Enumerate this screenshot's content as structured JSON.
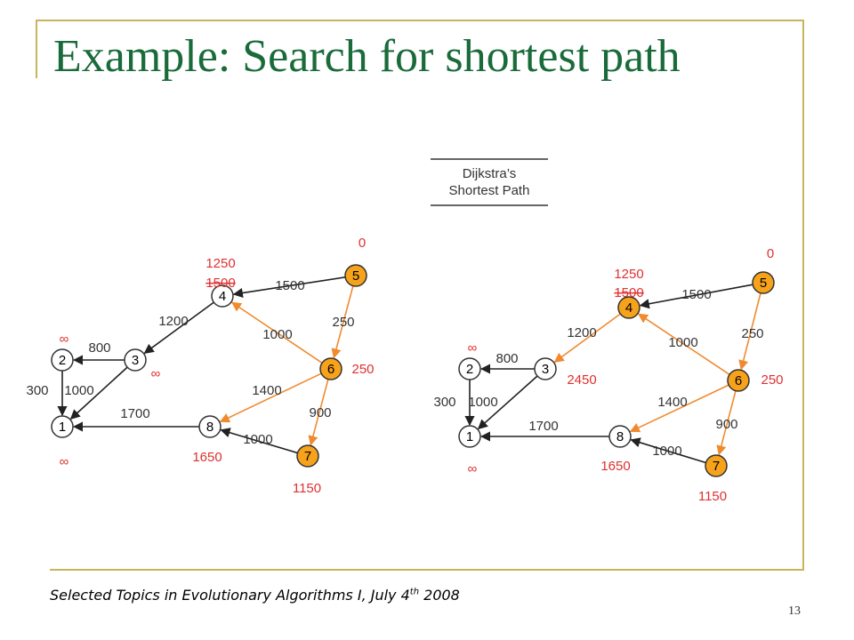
{
  "slide": {
    "title": "Example: Search for shortest path",
    "footer_main": "Selected Topics in Evolutionary Algorithms I, July 4",
    "footer_sup": "th",
    "footer_year": " 2008",
    "page_number": "13"
  },
  "legend": {
    "line1": "Dijkstra’s",
    "line2": "Shortest Path"
  },
  "colors": {
    "title": "#1a6b3a",
    "visited_node": "#f7a21b",
    "tree_edge": "#f08a30",
    "plain_edge": "#222222",
    "distance_label": "#e03030",
    "frame": "#c8b45a"
  },
  "graphs": [
    {
      "nodes": [
        {
          "id": "1",
          "visited": false,
          "distances": [
            "∞"
          ]
        },
        {
          "id": "2",
          "visited": false,
          "distances": [
            "∞"
          ]
        },
        {
          "id": "3",
          "visited": false,
          "distances": [
            "∞"
          ]
        },
        {
          "id": "4",
          "visited": false,
          "distances": [
            "1250",
            "1500"
          ]
        },
        {
          "id": "5",
          "visited": true,
          "distances": [
            "0"
          ]
        },
        {
          "id": "6",
          "visited": true,
          "distances": [
            "250"
          ]
        },
        {
          "id": "7",
          "visited": true,
          "distances": [
            "1150"
          ]
        },
        {
          "id": "8",
          "visited": false,
          "distances": [
            "1650"
          ]
        }
      ],
      "edges": [
        {
          "from": "5",
          "to": "4",
          "weight": "1500",
          "tree": false
        },
        {
          "from": "5",
          "to": "6",
          "weight": "250",
          "tree": true
        },
        {
          "from": "6",
          "to": "4",
          "weight": "1000",
          "tree": true
        },
        {
          "from": "4",
          "to": "3",
          "weight": "1200",
          "tree": false
        },
        {
          "from": "3",
          "to": "2",
          "weight": "800",
          "tree": false
        },
        {
          "from": "2",
          "to": "1",
          "weight": "300",
          "tree": false
        },
        {
          "from": "3",
          "to": "1",
          "weight": "1000",
          "tree": false
        },
        {
          "from": "6",
          "to": "8",
          "weight": "1400",
          "tree": true
        },
        {
          "from": "6",
          "to": "7",
          "weight": "900",
          "tree": true
        },
        {
          "from": "7",
          "to": "8",
          "weight": "1000",
          "tree": false
        },
        {
          "from": "8",
          "to": "1",
          "weight": "1700",
          "tree": false
        }
      ]
    },
    {
      "nodes": [
        {
          "id": "1",
          "visited": false,
          "distances": [
            "∞"
          ]
        },
        {
          "id": "2",
          "visited": false,
          "distances": [
            "∞"
          ]
        },
        {
          "id": "3",
          "visited": false,
          "distances": [
            "2450"
          ]
        },
        {
          "id": "4",
          "visited": true,
          "distances": [
            "1250",
            "1500"
          ]
        },
        {
          "id": "5",
          "visited": true,
          "distances": [
            "0"
          ]
        },
        {
          "id": "6",
          "visited": true,
          "distances": [
            "250"
          ]
        },
        {
          "id": "7",
          "visited": true,
          "distances": [
            "1150"
          ]
        },
        {
          "id": "8",
          "visited": false,
          "distances": [
            "1650"
          ]
        }
      ],
      "edges": [
        {
          "from": "5",
          "to": "4",
          "weight": "1500",
          "tree": false
        },
        {
          "from": "5",
          "to": "6",
          "weight": "250",
          "tree": true
        },
        {
          "from": "6",
          "to": "4",
          "weight": "1000",
          "tree": true
        },
        {
          "from": "4",
          "to": "3",
          "weight": "1200",
          "tree": true
        },
        {
          "from": "3",
          "to": "2",
          "weight": "800",
          "tree": false
        },
        {
          "from": "2",
          "to": "1",
          "weight": "300",
          "tree": false
        },
        {
          "from": "3",
          "to": "1",
          "weight": "1000",
          "tree": false
        },
        {
          "from": "6",
          "to": "8",
          "weight": "1400",
          "tree": true
        },
        {
          "from": "6",
          "to": "7",
          "weight": "900",
          "tree": true
        },
        {
          "from": "7",
          "to": "8",
          "weight": "1000",
          "tree": false
        },
        {
          "from": "8",
          "to": "1",
          "weight": "1700",
          "tree": false
        }
      ]
    }
  ]
}
